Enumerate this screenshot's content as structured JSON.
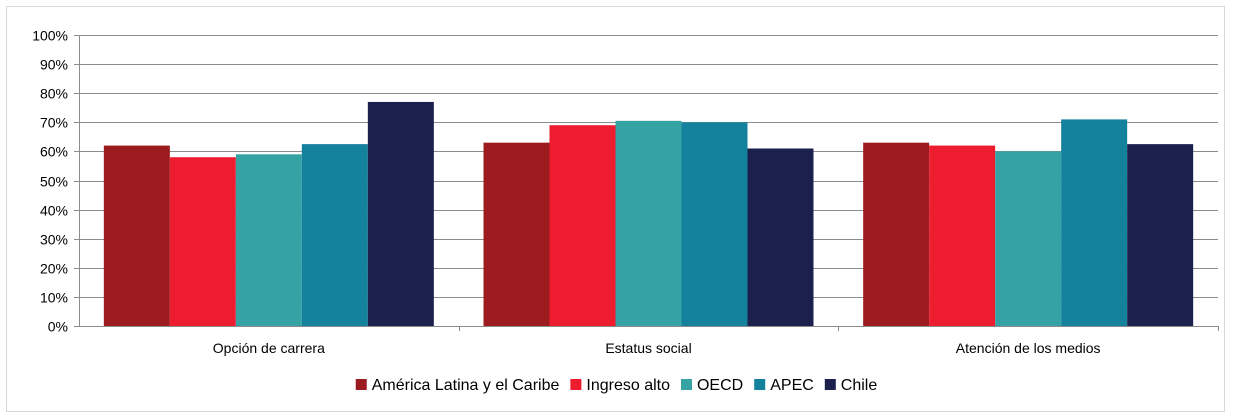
{
  "chart_data": {
    "type": "bar",
    "title": "",
    "xlabel": "",
    "ylabel": "",
    "categories": [
      "Opción de carrera",
      "Estatus social",
      "Atención de los medios"
    ],
    "series": [
      {
        "name": "América Latina y el Caribe",
        "color": "#9B1B1E",
        "values": [
          62,
          63,
          63
        ]
      },
      {
        "name": "Ingreso alto",
        "color": "#ED1C2E",
        "values": [
          58,
          69,
          62
        ]
      },
      {
        "name": "OECD",
        "color": "#35A2A4",
        "values": [
          59,
          70.5,
          60
        ]
      },
      {
        "name": "APEC",
        "color": "#14819D",
        "values": [
          62.5,
          70,
          71
        ]
      },
      {
        "name": "Chile",
        "color": "#1B204C",
        "values": [
          77,
          61,
          62.5
        ]
      }
    ],
    "ylim": [
      0,
      100
    ],
    "yticks": [
      "0%",
      "10%",
      "20%",
      "30%",
      "40%",
      "50%",
      "60%",
      "70%",
      "80%",
      "90%",
      "100%"
    ],
    "grid": true,
    "legend_position": "bottom",
    "gridline_color": "#8c8c8c",
    "axis_text_color": "#000000"
  }
}
